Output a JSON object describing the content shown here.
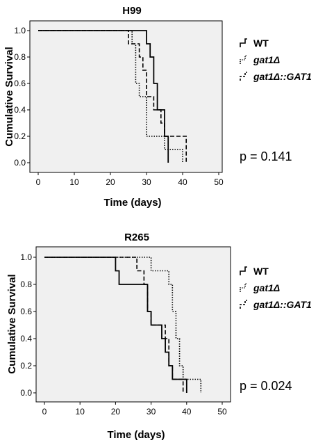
{
  "chart_data": [
    {
      "type": "line",
      "title": "H99",
      "xlabel": "Time (days)",
      "ylabel": "Cumulative Survival",
      "xlim": [
        0,
        50
      ],
      "ylim": [
        0,
        1.0
      ],
      "xticks": [
        "0",
        "10",
        "20",
        "30",
        "40",
        "50"
      ],
      "yticks": [
        "0.0",
        "0.2",
        "0.4",
        "0.6",
        "0.8",
        "1.0"
      ],
      "p_value": "p = 0.141",
      "series": [
        {
          "name": "WT",
          "style": "solid",
          "steps": [
            [
              0,
              1.0
            ],
            [
              30,
              0.9
            ],
            [
              31,
              0.8
            ],
            [
              32,
              0.6
            ],
            [
              33,
              0.4
            ],
            [
              35,
              0.2
            ],
            [
              36,
              0.0
            ]
          ]
        },
        {
          "name": "gat1Δ",
          "style": "dotted",
          "steps": [
            [
              0,
              1.0
            ],
            [
              26,
              0.9
            ],
            [
              27,
              0.6
            ],
            [
              28,
              0.5
            ],
            [
              30,
              0.2
            ],
            [
              35,
              0.1
            ],
            [
              40,
              0.0
            ]
          ]
        },
        {
          "name": "gat1Δ::GAT1",
          "style": "dashed",
          "steps": [
            [
              0,
              1.0
            ],
            [
              25,
              0.9
            ],
            [
              28,
              0.8
            ],
            [
              29,
              0.7
            ],
            [
              30,
              0.5
            ],
            [
              32,
              0.4
            ],
            [
              34,
              0.3
            ],
            [
              35,
              0.2
            ],
            [
              41,
              0.0
            ]
          ]
        }
      ],
      "legend": [
        {
          "label": "WT",
          "italic": false,
          "style": "solid"
        },
        {
          "label": "gat1Δ",
          "italic": true,
          "style": "dotted"
        },
        {
          "label": "gat1Δ::GAT1",
          "italic": true,
          "style": "dashed"
        }
      ]
    },
    {
      "type": "line",
      "title": "R265",
      "xlabel": "Time (days)",
      "ylabel": "Cumulative Survival",
      "xlim": [
        0,
        50
      ],
      "ylim": [
        0,
        1.0
      ],
      "xticks": [
        "0",
        "10",
        "20",
        "30",
        "40",
        "50"
      ],
      "yticks": [
        "0.0",
        "0.2",
        "0.4",
        "0.6",
        "0.8",
        "1.0"
      ],
      "p_value": "p = 0.024",
      "series": [
        {
          "name": "WT",
          "style": "solid",
          "steps": [
            [
              0,
              1.0
            ],
            [
              20,
              0.9
            ],
            [
              21,
              0.8
            ],
            [
              29,
              0.6
            ],
            [
              30,
              0.5
            ],
            [
              33,
              0.4
            ],
            [
              34,
              0.3
            ],
            [
              35,
              0.2
            ],
            [
              36,
              0.1
            ],
            [
              40,
              0.0
            ]
          ]
        },
        {
          "name": "gat1Δ",
          "style": "dotted",
          "steps": [
            [
              0,
              1.0
            ],
            [
              30,
              0.9
            ],
            [
              35,
              0.8
            ],
            [
              36,
              0.6
            ],
            [
              37,
              0.4
            ],
            [
              38,
              0.2
            ],
            [
              39,
              0.1
            ],
            [
              44,
              0.0
            ]
          ]
        },
        {
          "name": "gat1Δ::GAT1",
          "style": "dashed",
          "steps": [
            [
              0,
              1.0
            ],
            [
              26,
              0.9
            ],
            [
              28,
              0.8
            ],
            [
              29,
              0.6
            ],
            [
              30,
              0.5
            ],
            [
              34,
              0.4
            ],
            [
              35,
              0.2
            ],
            [
              36,
              0.1
            ],
            [
              39,
              0.0
            ]
          ]
        }
      ],
      "legend": [
        {
          "label": "WT",
          "italic": false,
          "style": "solid"
        },
        {
          "label": "gat1Δ",
          "italic": true,
          "style": "dotted"
        },
        {
          "label": "gat1Δ::GAT1",
          "italic": true,
          "style": "dashed"
        }
      ]
    }
  ],
  "colors": {
    "plot_background": "#f0f0f0",
    "line": "#000000"
  }
}
